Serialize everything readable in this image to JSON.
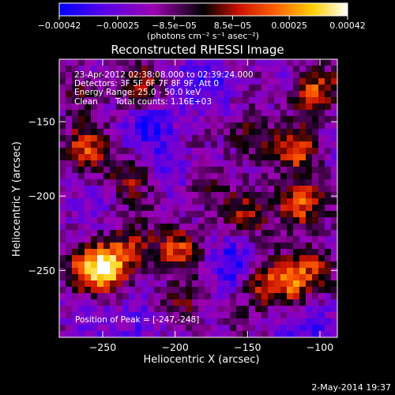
{
  "chart_data": {
    "type": "heatmap",
    "title": "Reconstructed RHESSI Image",
    "xlabel": "Heliocentric X (arcsec)",
    "ylabel": "Heliocentric Y (arcsec)",
    "xlim": [
      -280,
      -88
    ],
    "ylim": [
      -295,
      -108
    ],
    "x_ticks": [
      -250,
      -200,
      -150,
      -100
    ],
    "x_tick_labels": [
      "−250",
      "−200",
      "−150",
      "−100"
    ],
    "y_ticks": [
      -150,
      -200,
      -250
    ],
    "y_tick_labels": [
      "−150",
      "−200",
      "−250"
    ],
    "colorbar": {
      "range": [
        -0.00042,
        0.00042
      ],
      "ticks": [
        -0.00042,
        -0.00025,
        -8.5e-05,
        8.5e-05,
        0.00025,
        0.00042
      ],
      "tick_labels": [
        "−0.00042",
        "−0.00025",
        "−8.5e−05",
        "8.5e−05",
        "0.00025",
        "0.00042"
      ],
      "unit_label": "(photons cm⁻² s⁻¹ asec⁻²)",
      "colors": [
        "#0000ff",
        "#5a00e6",
        "#9b00b0",
        "#000000",
        "#c81000",
        "#ff6000",
        "#ffd000",
        "#ffffff"
      ]
    },
    "bright_regions": [
      {
        "x": -247,
        "y": -248,
        "strength": 1.0
      },
      {
        "x": -228,
        "y": -235,
        "strength": 0.55
      },
      {
        "x": -262,
        "y": -250,
        "strength": 0.45
      },
      {
        "x": -198,
        "y": -235,
        "strength": 0.6
      },
      {
        "x": -195,
        "y": -275,
        "strength": 0.45
      },
      {
        "x": -232,
        "y": -185,
        "strength": 0.45
      },
      {
        "x": -262,
        "y": -168,
        "strength": 0.55
      },
      {
        "x": -265,
        "y": -130,
        "strength": 0.4
      },
      {
        "x": -222,
        "y": -128,
        "strength": 0.45
      },
      {
        "x": -150,
        "y": -160,
        "strength": 0.5
      },
      {
        "x": -150,
        "y": -215,
        "strength": 0.45
      },
      {
        "x": -140,
        "y": -258,
        "strength": 0.55
      },
      {
        "x": -115,
        "y": -205,
        "strength": 0.9
      },
      {
        "x": -115,
        "y": -170,
        "strength": 0.6
      },
      {
        "x": -105,
        "y": -130,
        "strength": 0.7
      },
      {
        "x": -120,
        "y": -260,
        "strength": 0.6
      },
      {
        "x": -100,
        "y": -250,
        "strength": 0.55
      },
      {
        "x": -180,
        "y": -195,
        "strength": 0.35
      }
    ],
    "dark_regions": [
      {
        "x": -215,
        "y": -150,
        "strength": 0.6
      },
      {
        "x": -172,
        "y": -125,
        "strength": 0.5
      },
      {
        "x": -160,
        "y": -245,
        "strength": 0.55
      },
      {
        "x": -225,
        "y": -285,
        "strength": 0.55
      },
      {
        "x": -100,
        "y": -285,
        "strength": 0.5
      },
      {
        "x": -200,
        "y": -180,
        "strength": 0.4
      }
    ]
  },
  "annotations": {
    "time_range": "23-Apr-2012 02:38:08.000 to 02:39:24.000",
    "detectors": "Detectors: 3F 5F 6F 7F 8F 9F, Att 0",
    "energy_range": "Energy Range: 25.0 - 50.0 keV",
    "method": "Clean",
    "total_counts": "Total counts: 1.16E+03",
    "peak_position": "Position of Peak = [-247,-248]"
  },
  "footer": {
    "date": "2-May-2014 19:37"
  }
}
